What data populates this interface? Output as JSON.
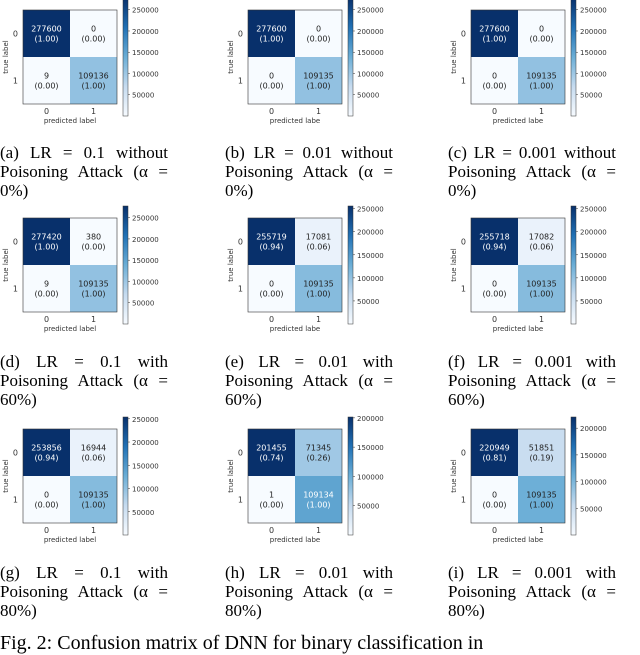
{
  "panels": [
    {
      "letter": "(a)",
      "caption": "LR = 0.1 without Poisoning Attack (α = 0%)",
      "cells": [
        {
          "count": "277600",
          "pct": "(1.00)",
          "value": 277600
        },
        {
          "count": "0",
          "pct": "(0.00)",
          "value": 0
        },
        {
          "count": "9",
          "pct": "(0.00)",
          "value": 9
        },
        {
          "count": "109136",
          "pct": "(1.00)",
          "value": 109136
        }
      ],
      "colorbar_ticks": [
        250000,
        200000,
        150000,
        100000,
        50000
      ],
      "colorbar_max": 277600,
      "xlabel": "predicted label",
      "ylabel": "true label"
    },
    {
      "letter": "(b)",
      "caption": "LR = 0.01 without Poisoning Attack (α = 0%)",
      "cells": [
        {
          "count": "277600",
          "pct": "(1.00)",
          "value": 277600
        },
        {
          "count": "0",
          "pct": "(0.00)",
          "value": 0
        },
        {
          "count": "0",
          "pct": "(0.00)",
          "value": 0
        },
        {
          "count": "109135",
          "pct": "(1.00)",
          "value": 109135
        }
      ],
      "colorbar_ticks": [
        250000,
        200000,
        150000,
        100000,
        50000
      ],
      "colorbar_max": 277600,
      "xlabel": "predicted labe",
      "ylabel": "true label"
    },
    {
      "letter": "(c)",
      "caption": "LR = 0.001 without Poisoning Attack (α = 0%)",
      "cells": [
        {
          "count": "277600",
          "pct": "(1.00)",
          "value": 277600
        },
        {
          "count": "0",
          "pct": "(0.00)",
          "value": 0
        },
        {
          "count": "0",
          "pct": "(0.00)",
          "value": 0
        },
        {
          "count": "109135",
          "pct": "(1.00)",
          "value": 109135
        }
      ],
      "colorbar_ticks": [
        250000,
        200000,
        150000,
        100000,
        50000
      ],
      "colorbar_max": 277600,
      "xlabel": "predicted labe",
      "ylabel": "true label"
    },
    {
      "letter": "(d)",
      "caption": "LR = 0.1 with Poisoning Attack (α = 60%)",
      "cells": [
        {
          "count": "277420",
          "pct": "(1.00)",
          "value": 277420
        },
        {
          "count": "380",
          "pct": "(0.00)",
          "value": 380
        },
        {
          "count": "9",
          "pct": "(0.00)",
          "value": 9
        },
        {
          "count": "109135",
          "pct": "(1.00)",
          "value": 109135
        }
      ],
      "colorbar_ticks": [
        250000,
        200000,
        150000,
        100000,
        50000
      ],
      "colorbar_max": 277420,
      "xlabel": "predicted label",
      "ylabel": "true label"
    },
    {
      "letter": "(e)",
      "caption": "LR = 0.01 with Poisoning Attack (α = 60%)",
      "cells": [
        {
          "count": "255719",
          "pct": "(0.94)",
          "value": 255719
        },
        {
          "count": "17081",
          "pct": "(0.06)",
          "value": 17081
        },
        {
          "count": "0",
          "pct": "(0.00)",
          "value": 0
        },
        {
          "count": "109135",
          "pct": "(1.00)",
          "value": 109135
        }
      ],
      "colorbar_ticks": [
        250000,
        200000,
        150000,
        100000,
        50000
      ],
      "colorbar_max": 255719,
      "xlabel": "predicted labe",
      "ylabel": "true label"
    },
    {
      "letter": "(f)",
      "caption": "LR = 0.001 with Poisoning Attack (α = 60%)",
      "cells": [
        {
          "count": "255718",
          "pct": "(0.94)",
          "value": 255718
        },
        {
          "count": "17082",
          "pct": "(0.06)",
          "value": 17082
        },
        {
          "count": "0",
          "pct": "(0.00)",
          "value": 0
        },
        {
          "count": "109135",
          "pct": "(1.00)",
          "value": 109135
        }
      ],
      "colorbar_ticks": [
        250000,
        200000,
        150000,
        100000,
        50000
      ],
      "colorbar_max": 255718,
      "xlabel": "predicted labe",
      "ylabel": "true label"
    },
    {
      "letter": "(g)",
      "caption": "LR = 0.1 with Poisoning Attack (α = 80%)",
      "cells": [
        {
          "count": "253856",
          "pct": "(0.94)",
          "value": 253856
        },
        {
          "count": "16944",
          "pct": "(0.06)",
          "value": 16944
        },
        {
          "count": "0",
          "pct": "(0.00)",
          "value": 0
        },
        {
          "count": "109135",
          "pct": "(1.00)",
          "value": 109135
        }
      ],
      "colorbar_ticks": [
        250000,
        200000,
        150000,
        100000,
        50000
      ],
      "colorbar_max": 253856,
      "xlabel": "predicted label",
      "ylabel": "true label"
    },
    {
      "letter": "(h)",
      "caption": "LR = 0.01 with Poisoning Attack (α = 80%)",
      "cells": [
        {
          "count": "201455",
          "pct": "(0.74)",
          "value": 201455
        },
        {
          "count": "71345",
          "pct": "(0.26)",
          "value": 71345
        },
        {
          "count": "1",
          "pct": "(0.00)",
          "value": 1
        },
        {
          "count": "109134",
          "pct": "(1.00)",
          "value": 109134
        }
      ],
      "colorbar_ticks": [
        200000,
        150000,
        100000,
        50000
      ],
      "colorbar_max": 201455,
      "xlabel": "predicted labe",
      "ylabel": "true label"
    },
    {
      "letter": "(i)",
      "caption": "LR = 0.001 with Poisoning Attack (α = 80%)",
      "cells": [
        {
          "count": "220949",
          "pct": "(0.81)",
          "value": 220949
        },
        {
          "count": "51851",
          "pct": "(0.19)",
          "value": 51851
        },
        {
          "count": "0",
          "pct": "(0.00)",
          "value": 0
        },
        {
          "count": "109135",
          "pct": "(1.00)",
          "value": 109135
        }
      ],
      "colorbar_ticks": [
        200000,
        150000,
        100000,
        50000
      ],
      "colorbar_max": 220949,
      "xlabel": "predicted labe",
      "ylabel": "true label"
    }
  ],
  "axis_ticks": {
    "x": [
      "0",
      "1"
    ],
    "y": [
      "0",
      "1"
    ]
  },
  "footer": "Fig. 2: Confusion matrix of DNN for binary classification in"
}
